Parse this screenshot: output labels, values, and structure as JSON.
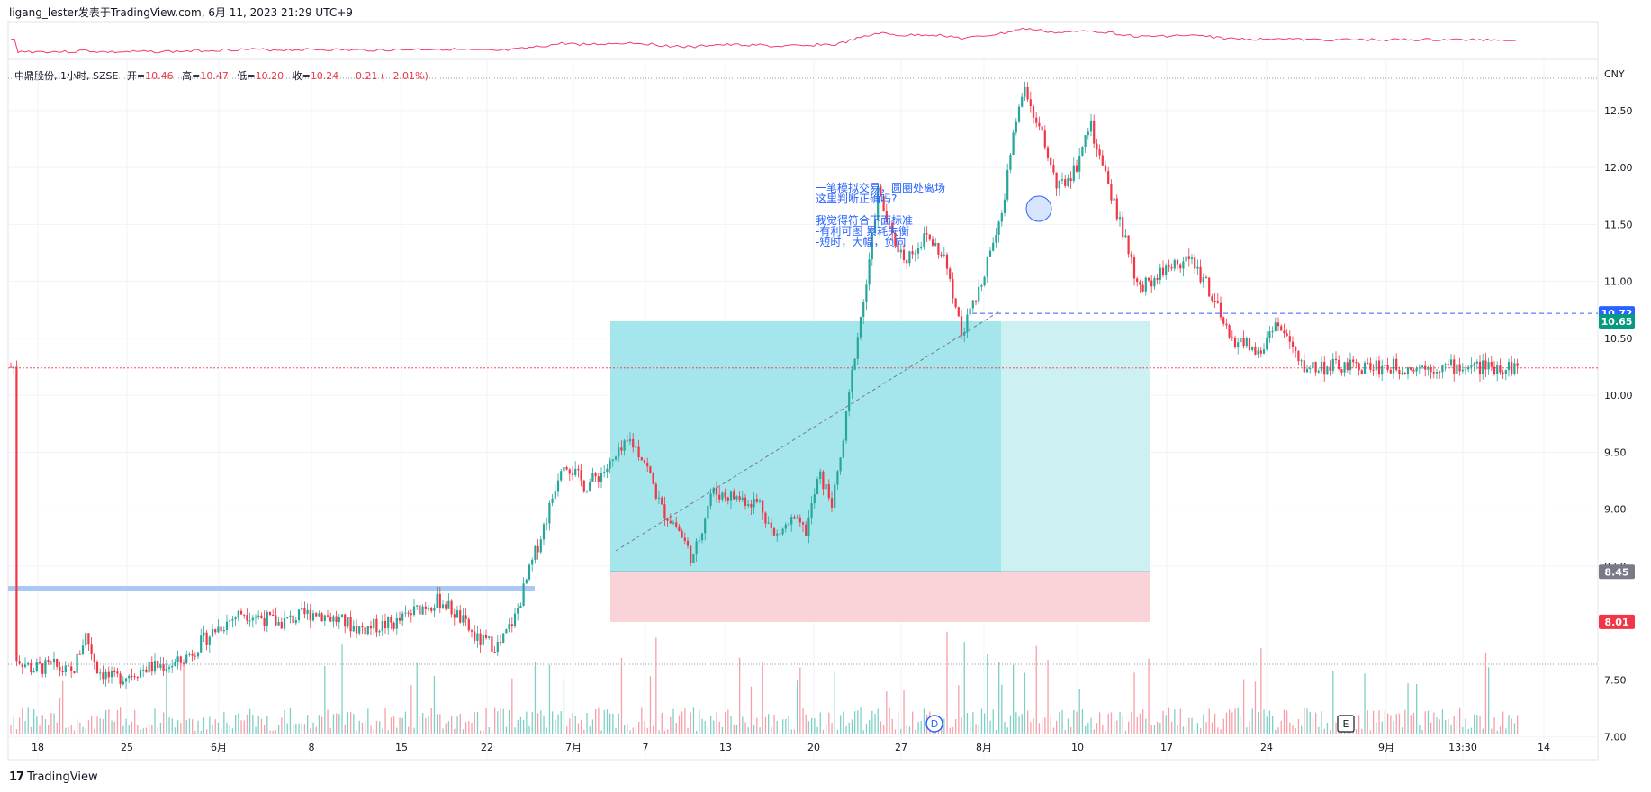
{
  "header": {
    "text": "ligang_lester发表于TradingView.com, 6月 11, 2023 21:29 UTC+9"
  },
  "legend": {
    "symbol": "中鼎股份, 1小时, SZSE",
    "open_label": "开=",
    "open": "10.46",
    "high_label": "高=",
    "high": "10.47",
    "low_label": "低=",
    "low": "10.20",
    "close_label": "收=",
    "close": "10.24",
    "change": "−0.21 (−2.01%)"
  },
  "currency": "CNY",
  "annotation": {
    "lines": [
      "一笔模拟交易，圆圈处离场",
      "这里判断正确吗?",
      "",
      "我觉得符合下面标准",
      "-有利可图 累耗失衡",
      "-短时，大幅，负向"
    ]
  },
  "price_labels": {
    "current": "10.72",
    "current_color": "#2962ff",
    "entry": "10.65",
    "entry_color": "#089981",
    "stop_line": "8.45",
    "stop_line_color": "#787b86",
    "stop": "8.01",
    "stop_color": "#f23645"
  },
  "events": {
    "dividend": "D",
    "earnings": "E"
  },
  "brand": {
    "logo": "17",
    "name": "TradingView"
  },
  "colors": {
    "up": "#26a69a",
    "down": "#f23645",
    "profit_zone": "#a5e6ec",
    "loss_zone": "#f9d3d7",
    "oscillator": "#f23d6a"
  },
  "chart_data": {
    "type": "candlestick",
    "symbol": "中鼎股份",
    "interval": "1小时",
    "exchange": "SZSE",
    "ylim": [
      6.8,
      12.95
    ],
    "y_ticks": [
      "12.50",
      "12.00",
      "11.50",
      "11.00",
      "10.50",
      "10.00",
      "9.50",
      "9.00",
      "8.50",
      "7.50",
      "7.00"
    ],
    "x_tick_labels": [
      "18",
      "25",
      "6月",
      "8",
      "15",
      "22",
      "7月",
      "7",
      "13",
      "20",
      "27",
      "8月",
      "10",
      "17",
      "24",
      "9月",
      "13:30",
      "14"
    ],
    "price_path": [
      [
        18,
        7.7
      ],
      [
        35,
        7.6
      ],
      [
        60,
        7.62
      ],
      [
        80,
        7.55
      ],
      [
        95,
        7.9
      ],
      [
        108,
        7.6
      ],
      [
        125,
        7.5
      ],
      [
        160,
        7.6
      ],
      [
        200,
        7.65
      ],
      [
        240,
        7.95
      ],
      [
        270,
        8.1
      ],
      [
        310,
        8.0
      ],
      [
        350,
        8.1
      ],
      [
        400,
        7.95
      ],
      [
        440,
        8.0
      ],
      [
        470,
        8.15
      ],
      [
        490,
        8.2
      ],
      [
        510,
        8.05
      ],
      [
        530,
        7.85
      ],
      [
        555,
        7.8
      ],
      [
        572,
        8.05
      ],
      [
        590,
        8.5
      ],
      [
        610,
        9.0
      ],
      [
        625,
        9.45
      ],
      [
        650,
        9.2
      ],
      [
        680,
        9.4
      ],
      [
        700,
        9.6
      ],
      [
        715,
        9.45
      ],
      [
        735,
        9.0
      ],
      [
        752,
        8.85
      ],
      [
        770,
        8.55
      ],
      [
        790,
        9.15
      ],
      [
        820,
        9.1
      ],
      [
        845,
        9.05
      ],
      [
        860,
        8.75
      ],
      [
        880,
        8.9
      ],
      [
        895,
        8.8
      ],
      [
        910,
        9.3
      ],
      [
        925,
        9.05
      ],
      [
        935,
        9.5
      ],
      [
        950,
        10.4
      ],
      [
        965,
        11.1
      ],
      [
        975,
        11.8
      ],
      [
        990,
        11.4
      ],
      [
        1005,
        11.2
      ],
      [
        1030,
        11.4
      ],
      [
        1050,
        11.2
      ],
      [
        1068,
        10.55
      ],
      [
        1085,
        10.85
      ],
      [
        1100,
        11.3
      ],
      [
        1115,
        11.7
      ],
      [
        1128,
        12.4
      ],
      [
        1140,
        12.7
      ],
      [
        1160,
        12.2
      ],
      [
        1175,
        11.8
      ],
      [
        1195,
        12.0
      ],
      [
        1210,
        12.4
      ],
      [
        1228,
        11.9
      ],
      [
        1245,
        11.5
      ],
      [
        1265,
        10.9
      ],
      [
        1290,
        11.1
      ],
      [
        1320,
        11.2
      ],
      [
        1340,
        11.0
      ],
      [
        1365,
        10.5
      ],
      [
        1385,
        10.45
      ],
      [
        1400,
        10.35
      ],
      [
        1415,
        10.65
      ],
      [
        1430,
        10.5
      ],
      [
        1445,
        10.25
      ]
    ],
    "last": {
      "open": 10.46,
      "high": 10.47,
      "low": 10.2,
      "close": 10.24,
      "change": -0.21,
      "change_pct": -2.01
    },
    "position": {
      "type": "long",
      "entry": 10.65,
      "stop": 8.01,
      "stop_line": 8.45,
      "current": 10.72
    }
  }
}
